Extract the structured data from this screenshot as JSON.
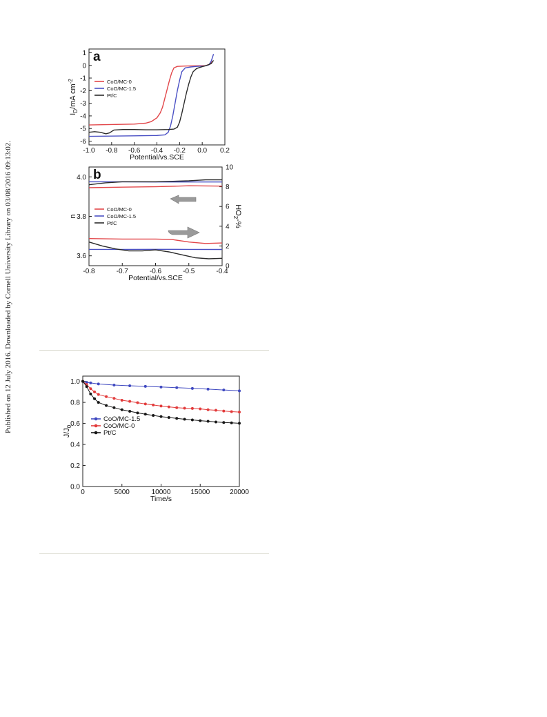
{
  "side_note": "Published on 12 July 2016. Downloaded by Cornell University Library on 03/08/2016 09:13:02.",
  "chart_data": [
    {
      "id": "a",
      "type": "line",
      "panel_label": "a",
      "xlabel": "Potential/vs.SCE",
      "ylabel": "I",
      "ylabel_sub": "D",
      "ylabel_rest": "/mA cm",
      "ylabel_sup": "-2",
      "xlim": [
        -1.0,
        0.2
      ],
      "ylim": [
        -6.3,
        1.3
      ],
      "x_ticks": [
        -1.0,
        -0.8,
        -0.6,
        -0.4,
        -0.2,
        0.0,
        0.2
      ],
      "x_tick_labels": [
        "-1.0",
        "-0.8",
        "-0.6",
        "-0.4",
        "-0.2",
        "0.0",
        "0.2"
      ],
      "y_ticks": [
        1,
        0,
        -1,
        -2,
        -3,
        -4,
        -5,
        -6
      ],
      "y_tick_labels": [
        "1",
        "0",
        "-1",
        "-2",
        "-3",
        "-4",
        "-5",
        "-6"
      ],
      "legend_position": "left",
      "grid": false,
      "series": [
        {
          "name": "CoO/MC-0",
          "color": "#e2474a",
          "x": [
            -1.0,
            -0.8,
            -0.6,
            -0.5,
            -0.45,
            -0.4,
            -0.37,
            -0.35,
            -0.33,
            -0.31,
            -0.29,
            -0.27,
            -0.25,
            -0.22,
            -0.15,
            -0.05,
            0.03,
            0.07,
            0.09
          ],
          "y": [
            -4.72,
            -4.68,
            -4.65,
            -4.58,
            -4.45,
            -4.15,
            -3.75,
            -3.3,
            -2.6,
            -1.9,
            -1.2,
            -0.6,
            -0.2,
            -0.08,
            -0.05,
            -0.03,
            -0.02,
            0.1,
            0.32
          ]
        },
        {
          "name": "CoO/MC-1.5",
          "color": "#4a50c4",
          "x": [
            -1.0,
            -0.8,
            -0.6,
            -0.4,
            -0.33,
            -0.3,
            -0.28,
            -0.26,
            -0.24,
            -0.22,
            -0.2,
            -0.18,
            -0.15,
            -0.1,
            -0.05,
            0.02,
            0.06,
            0.08,
            0.1
          ],
          "y": [
            -5.62,
            -5.6,
            -5.58,
            -5.55,
            -5.5,
            -5.3,
            -4.8,
            -4.0,
            -3.0,
            -2.0,
            -1.2,
            -0.5,
            -0.2,
            -0.12,
            -0.08,
            -0.05,
            0.05,
            0.35,
            0.9
          ]
        },
        {
          "name": "Pt/C",
          "color": "#2a2a2a",
          "x": [
            -1.0,
            -0.95,
            -0.9,
            -0.85,
            -0.82,
            -0.78,
            -0.7,
            -0.6,
            -0.5,
            -0.4,
            -0.3,
            -0.25,
            -0.22,
            -0.2,
            -0.18,
            -0.16,
            -0.14,
            -0.12,
            -0.1,
            -0.08,
            -0.05,
            0.0,
            0.04,
            0.08,
            0.1
          ],
          "y": [
            -5.3,
            -5.25,
            -5.3,
            -5.42,
            -5.35,
            -5.12,
            -5.08,
            -5.08,
            -5.1,
            -5.1,
            -5.08,
            -5.05,
            -4.9,
            -4.5,
            -3.8,
            -3.0,
            -2.2,
            -1.5,
            -0.9,
            -0.5,
            -0.25,
            -0.1,
            0.0,
            0.15,
            0.4
          ]
        }
      ]
    },
    {
      "id": "b",
      "type": "line",
      "panel_label": "b",
      "xlabel": "Potential/vs.SCE",
      "ylabel": "n",
      "ylabel_right": "HO",
      "ylabel_right_sub": "2",
      "ylabel_right_rest": "-%",
      "xlim": [
        -0.8,
        -0.4
      ],
      "ylim": [
        3.55,
        4.05
      ],
      "y2lim": [
        0,
        10
      ],
      "x_ticks": [
        -0.8,
        -0.7,
        -0.6,
        -0.5,
        -0.4
      ],
      "x_tick_labels": [
        "-0.8",
        "-0.7",
        "-0.6",
        "-0.5",
        "-0.4"
      ],
      "y_ticks": [
        3.6,
        3.8,
        4.0
      ],
      "y_tick_labels": [
        "3.6",
        "3.8",
        "4.0"
      ],
      "y2_ticks": [
        0,
        2,
        4,
        6,
        8,
        10
      ],
      "y2_tick_labels": [
        "0",
        "2",
        "4",
        "6",
        "8",
        "10"
      ],
      "legend_position": "center-left",
      "grid": false,
      "series": [
        {
          "name": "CoO/MC-0",
          "color": "#e2474a",
          "axis": "left",
          "x": [
            -0.8,
            -0.7,
            -0.6,
            -0.5,
            -0.4
          ],
          "y": [
            3.945,
            3.948,
            3.95,
            3.955,
            3.953
          ]
        },
        {
          "name": "CoO/MC-0",
          "color": "#e2474a",
          "axis": "right",
          "x": [
            -0.8,
            -0.7,
            -0.6,
            -0.55,
            -0.5,
            -0.45,
            -0.4
          ],
          "y": [
            2.75,
            2.7,
            2.7,
            2.65,
            2.4,
            2.25,
            2.3
          ]
        },
        {
          "name": "CoO/MC-1.5",
          "color": "#4a50c4",
          "axis": "left",
          "x": [
            -0.8,
            -0.7,
            -0.6,
            -0.5,
            -0.4
          ],
          "y": [
            3.975,
            3.975,
            3.974,
            3.974,
            3.974
          ]
        },
        {
          "name": "CoO/MC-1.5",
          "color": "#4a50c4",
          "axis": "right",
          "x": [
            -0.8,
            -0.7,
            -0.6,
            -0.5,
            -0.4
          ],
          "y": [
            1.65,
            1.65,
            1.66,
            1.65,
            1.64
          ]
        },
        {
          "name": "Pt/C",
          "color": "#2a2a2a",
          "axis": "left",
          "x": [
            -0.8,
            -0.75,
            -0.7,
            -0.6,
            -0.5,
            -0.45,
            -0.4
          ],
          "y": [
            3.96,
            3.97,
            3.975,
            3.975,
            3.98,
            3.985,
            3.985
          ]
        },
        {
          "name": "Pt/C",
          "color": "#2a2a2a",
          "axis": "right",
          "x": [
            -0.8,
            -0.76,
            -0.72,
            -0.68,
            -0.64,
            -0.6,
            -0.56,
            -0.52,
            -0.48,
            -0.44,
            -0.4
          ],
          "y": [
            2.4,
            2.0,
            1.7,
            1.5,
            1.5,
            1.6,
            1.4,
            1.1,
            0.8,
            0.7,
            0.75
          ]
        }
      ]
    },
    {
      "id": "c",
      "type": "scatter",
      "xlabel": "Time/s",
      "ylabel": "J/J",
      "ylabel_sub": "0",
      "xlim": [
        0,
        20000
      ],
      "ylim": [
        0,
        1.05
      ],
      "x_ticks": [
        0,
        5000,
        10000,
        15000,
        20000
      ],
      "x_tick_labels": [
        "0",
        "5000",
        "10000",
        "15000",
        "20000"
      ],
      "y_ticks": [
        0.0,
        0.2,
        0.4,
        0.6,
        0.8,
        1.0
      ],
      "y_tick_labels": [
        "0.0",
        "0.2",
        "0.4",
        "0.6",
        "0.8",
        "1.0"
      ],
      "legend_position": "center-left",
      "grid": false,
      "series": [
        {
          "name": "CoO/MC-1.5",
          "color": "#3f49c0",
          "x": [
            0,
            500,
            1000,
            2000,
            4000,
            6000,
            8000,
            10000,
            12000,
            14000,
            16000,
            18000,
            20000
          ],
          "y": [
            1.0,
            0.99,
            0.985,
            0.975,
            0.965,
            0.958,
            0.952,
            0.946,
            0.94,
            0.933,
            0.926,
            0.918,
            0.91
          ]
        },
        {
          "name": "CoO/MC-0",
          "color": "#e23b3b",
          "x": [
            0,
            500,
            1000,
            1500,
            2000,
            3000,
            4000,
            5000,
            6000,
            7000,
            8000,
            9000,
            10000,
            11000,
            12000,
            13000,
            14000,
            15000,
            16000,
            17000,
            18000,
            19000,
            20000
          ],
          "y": [
            1.0,
            0.97,
            0.93,
            0.9,
            0.875,
            0.855,
            0.838,
            0.82,
            0.81,
            0.797,
            0.785,
            0.775,
            0.765,
            0.757,
            0.75,
            0.745,
            0.742,
            0.738,
            0.73,
            0.725,
            0.718,
            0.712,
            0.708
          ]
        },
        {
          "name": "Pt/C",
          "color": "#161616",
          "x": [
            0,
            500,
            1000,
            1500,
            2000,
            3000,
            4000,
            5000,
            6000,
            7000,
            8000,
            9000,
            10000,
            11000,
            12000,
            13000,
            14000,
            15000,
            16000,
            17000,
            18000,
            19000,
            20000
          ],
          "y": [
            1.0,
            0.95,
            0.88,
            0.835,
            0.8,
            0.77,
            0.75,
            0.73,
            0.715,
            0.7,
            0.688,
            0.676,
            0.665,
            0.656,
            0.648,
            0.64,
            0.633,
            0.626,
            0.62,
            0.614,
            0.609,
            0.605,
            0.601
          ]
        }
      ]
    }
  ]
}
